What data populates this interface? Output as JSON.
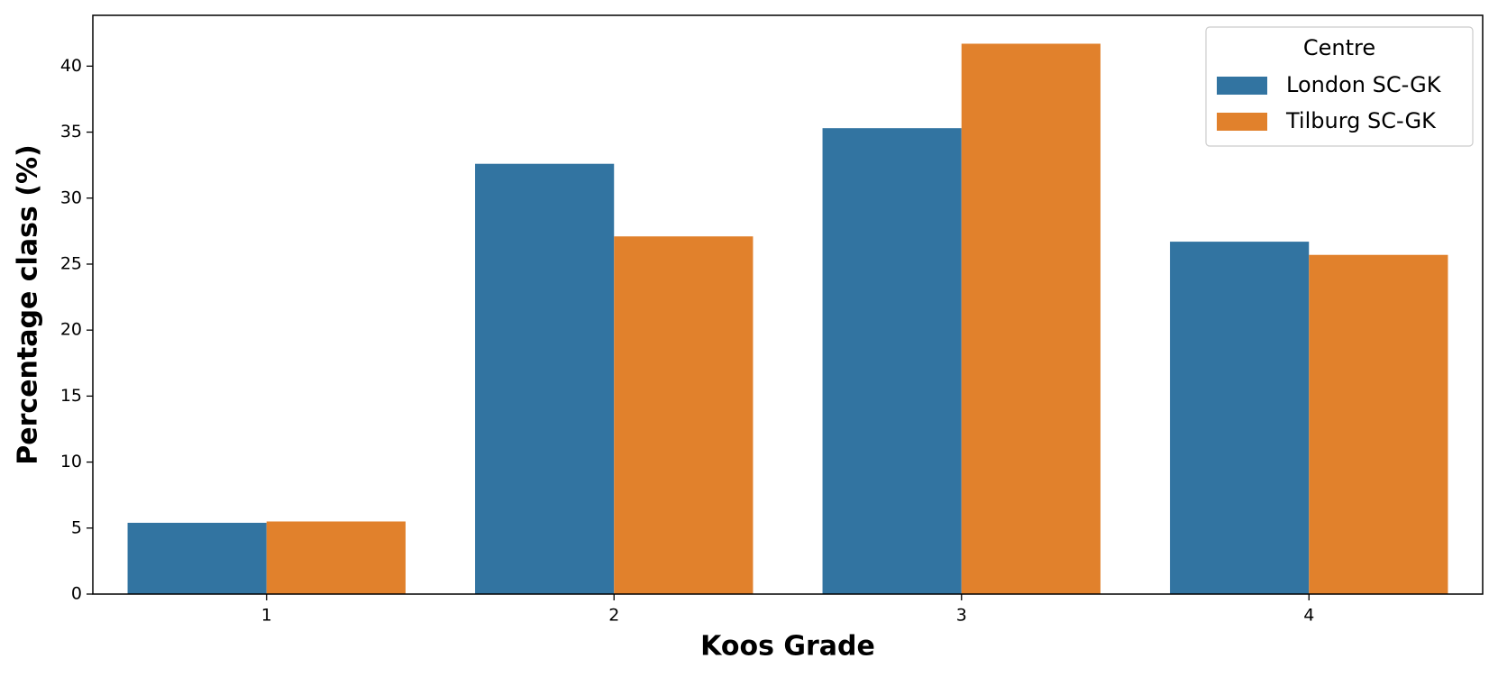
{
  "chart_data": {
    "type": "bar",
    "x_label": "Koos Grade",
    "y_label": "Percentage class (%)",
    "categories": [
      1,
      2,
      3,
      4
    ],
    "series": [
      {
        "name": "London SC-GK",
        "color": "#3274a1",
        "values": [
          5.4,
          32.6,
          35.3,
          26.7
        ]
      },
      {
        "name": "Tilburg SC-GK",
        "color": "#e1812c",
        "values": [
          5.5,
          27.1,
          41.7,
          25.7
        ]
      }
    ],
    "ylim": [
      0,
      43.85
    ],
    "yticks": [
      0,
      5,
      10,
      15,
      20,
      25,
      30,
      35,
      40
    ],
    "legend_title": "Centre",
    "legend": "upper right"
  }
}
